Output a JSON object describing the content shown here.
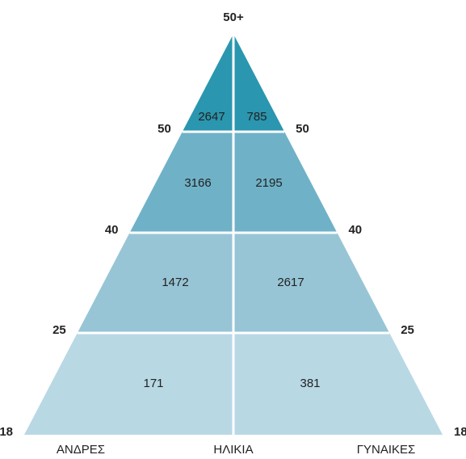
{
  "apex_label": "50+",
  "levels": [
    "50",
    "40",
    "25",
    "18"
  ],
  "bands": [
    {
      "men": 2647,
      "women": 785
    },
    {
      "men": 3166,
      "women": 2195
    },
    {
      "men": 1472,
      "women": 2617
    },
    {
      "men": 171,
      "women": 381
    }
  ],
  "footer": {
    "left": "ΑΝΔΡΕΣ",
    "center": "ΗΛΙΚΙΑ",
    "right": "ΓΥΝΑΙΚΕΣ"
  }
}
